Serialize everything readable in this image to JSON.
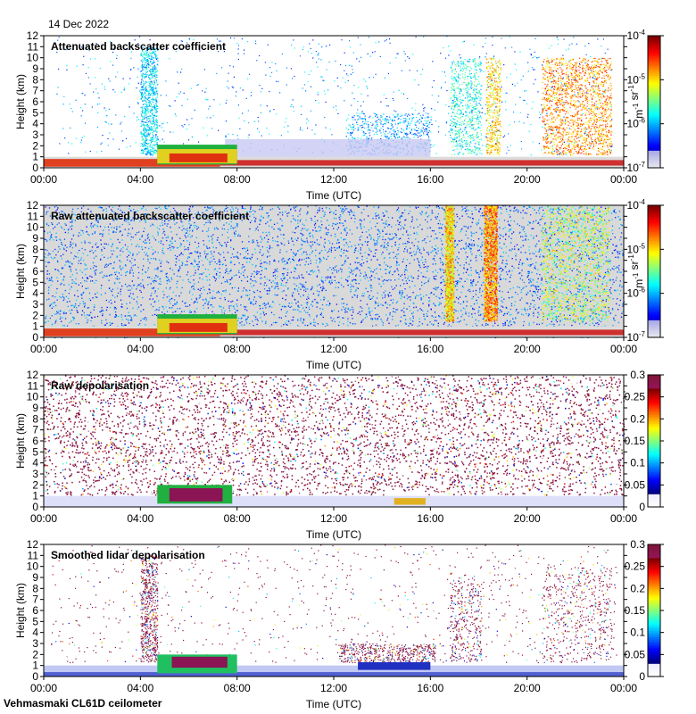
{
  "date": "14 Dec 2022",
  "footer": "Vehmasmaki CL61D ceilometer",
  "chart_data": [
    {
      "type": "heatmap",
      "title": "Attenuated backscatter coefficient",
      "xlabel": "Time (UTC)",
      "ylabel": "Height (km)",
      "xticks": [
        "00:00",
        "04:00",
        "08:00",
        "12:00",
        "16:00",
        "20:00",
        "00:00"
      ],
      "xlim": [
        0,
        24
      ],
      "ylim": [
        0,
        12
      ],
      "yticks": [
        "0",
        "1",
        "2",
        "3",
        "4",
        "5",
        "6",
        "7",
        "8",
        "9",
        "10",
        "11",
        "12"
      ],
      "colorbar": {
        "scale": "log",
        "range": [
          1e-07,
          0.0001
        ],
        "tick_labels": [
          "10-7",
          "10-6",
          "10-5",
          "10-4"
        ],
        "units": "m-1 sr-1"
      }
    },
    {
      "type": "heatmap",
      "title": "Raw attenuated backscatter coefficient",
      "xlabel": "Time (UTC)",
      "ylabel": "Height (km)",
      "xticks": [
        "00:00",
        "04:00",
        "08:00",
        "12:00",
        "16:00",
        "20:00",
        "00:00"
      ],
      "xlim": [
        0,
        24
      ],
      "ylim": [
        0,
        12
      ],
      "yticks": [
        "0",
        "1",
        "2",
        "3",
        "4",
        "5",
        "6",
        "7",
        "8",
        "9",
        "10",
        "11",
        "12"
      ],
      "colorbar": {
        "scale": "log",
        "range": [
          1e-07,
          0.0001
        ],
        "tick_labels": [
          "10-7",
          "10-6",
          "10-5",
          "10-4"
        ],
        "units": "m-1 sr-1"
      }
    },
    {
      "type": "heatmap",
      "title": "Raw depolarisation",
      "xlabel": "Time (UTC)",
      "ylabel": "Height (km)",
      "xticks": [
        "00:00",
        "04:00",
        "08:00",
        "12:00",
        "16:00",
        "20:00",
        "00:00"
      ],
      "xlim": [
        0,
        24
      ],
      "ylim": [
        0,
        12
      ],
      "yticks": [
        "0",
        "1",
        "2",
        "3",
        "4",
        "5",
        "6",
        "7",
        "8",
        "9",
        "10",
        "11",
        "12"
      ],
      "colorbar": {
        "scale": "linear",
        "range": [
          0,
          0.3
        ],
        "tick_labels": [
          "0",
          "0.05",
          "0.1",
          "0.15",
          "0.2",
          "0.25",
          "0.3"
        ],
        "units": ""
      }
    },
    {
      "type": "heatmap",
      "title": "Smoothed lidar depolarisation",
      "xlabel": "Time (UTC)",
      "ylabel": "Height (km)",
      "xticks": [
        "00:00",
        "04:00",
        "08:00",
        "12:00",
        "16:00",
        "20:00",
        "00:00"
      ],
      "xlim": [
        0,
        24
      ],
      "ylim": [
        0,
        12
      ],
      "yticks": [
        "0",
        "1",
        "2",
        "3",
        "4",
        "5",
        "6",
        "7",
        "8",
        "9",
        "10",
        "11",
        "12"
      ],
      "colorbar": {
        "scale": "linear",
        "range": [
          0,
          0.3
        ],
        "tick_labels": [
          "0",
          "0.05",
          "0.1",
          "0.15",
          "0.2",
          "0.25",
          "0.3"
        ],
        "units": ""
      }
    }
  ]
}
